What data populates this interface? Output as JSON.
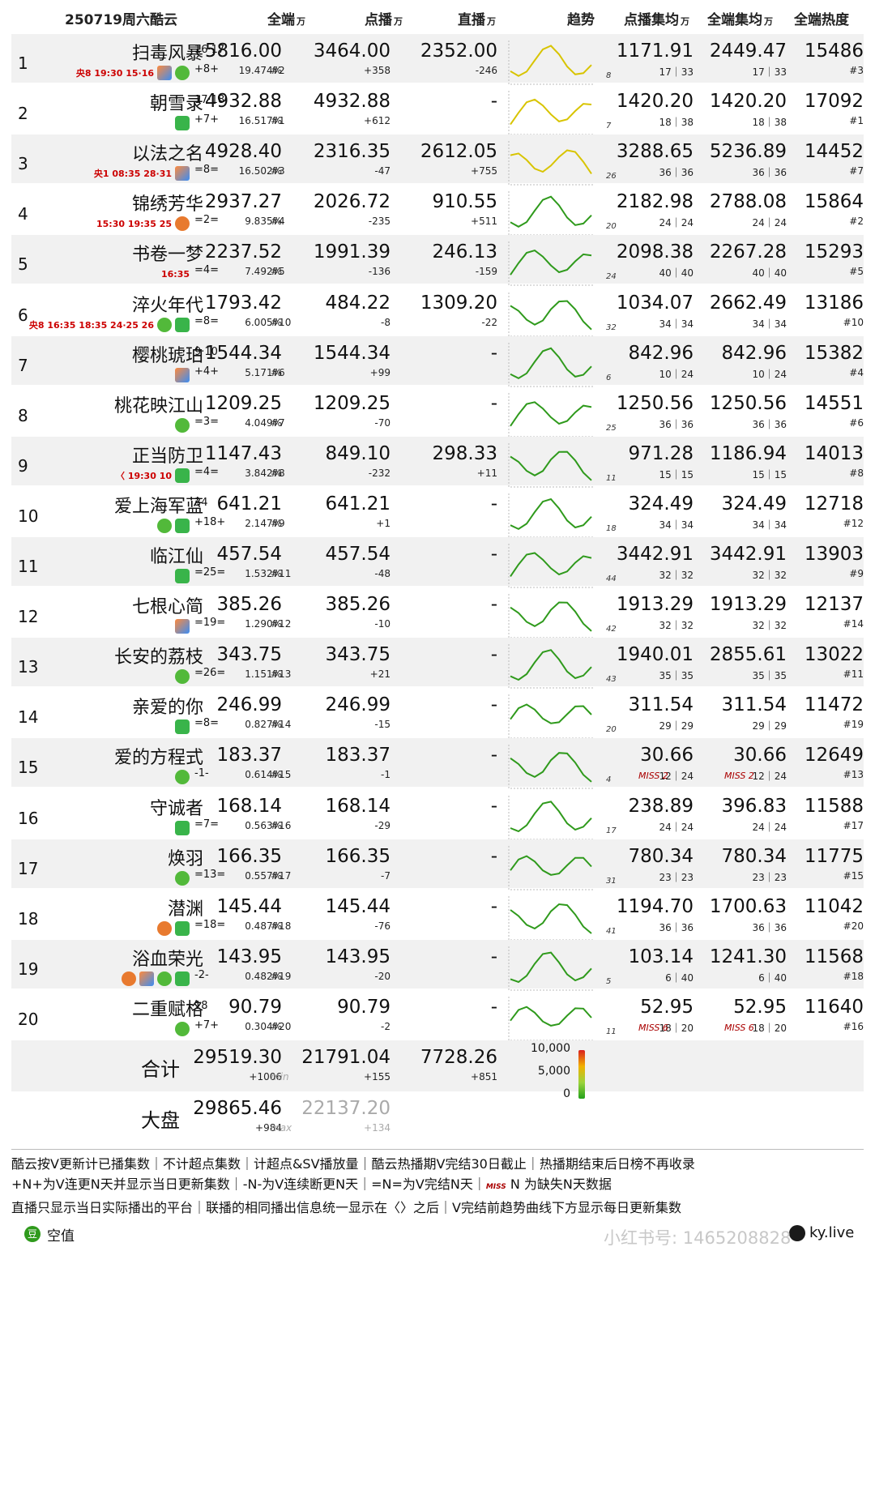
{
  "header": {
    "date": "250719周六酷云",
    "col_all": "全端",
    "col_all_u": "万",
    "col_vod": "点播",
    "col_vod_u": "万",
    "col_live": "直播",
    "col_live_u": "万",
    "col_trend": "趋势",
    "col_vod_avg": "点播集均",
    "col_vod_avg_u": "万",
    "col_all_avg": "全端集均",
    "col_all_avg_u": "万",
    "col_heat": "全端热度"
  },
  "rows": [
    {
      "rank": "1",
      "title": "扫毒风暴",
      "ep": "16·17",
      "upd": "+8+",
      "tag": "央8 19:30 15·16",
      "plats": [
        "t",
        "g"
      ],
      "all": "5816.00",
      "share": "19.474%",
      "vod": "3464.00",
      "vod_rank": "#2",
      "vod_delta": "+358",
      "live": "2352.00",
      "live_delta": "-246",
      "tcount": "8",
      "vod_avg": "1171.91",
      "vod_ep": "17｜33",
      "all_avg": "2449.47",
      "all_ep": "17｜33",
      "heat": "15486",
      "heat_rank": "#3"
    },
    {
      "rank": "2",
      "title": "朝雪录",
      "ep": "17·18",
      "upd": "+7+",
      "tag": "",
      "plats": [
        "q"
      ],
      "all": "4932.88",
      "share": "16.517%",
      "vod": "4932.88",
      "vod_rank": "#1",
      "vod_delta": "+612",
      "live": "-",
      "live_delta": "",
      "tcount": "7",
      "vod_avg": "1420.20",
      "vod_ep": "18｜38",
      "all_avg": "1420.20",
      "all_ep": "18｜38",
      "heat": "17092",
      "heat_rank": "#1"
    },
    {
      "rank": "3",
      "title": "以法之名",
      "ep": "",
      "upd": "=8=",
      "tag": "央1 08:35 28·31",
      "plats": [
        "t"
      ],
      "all": "4928.40",
      "share": "16.502%",
      "vod": "2316.35",
      "vod_rank": "#3",
      "vod_delta": "-47",
      "live": "2612.05",
      "live_delta": "+755",
      "tcount": "26",
      "vod_avg": "3288.65",
      "vod_ep": "36｜36",
      "all_avg": "5236.89",
      "all_ep": "36｜36",
      "heat": "14452",
      "heat_rank": "#7"
    },
    {
      "rank": "4",
      "title": "锦绣芳华",
      "ep": "",
      "upd": "=2=",
      "tag": "15:30 19:35 25",
      "plats": [
        "m"
      ],
      "all": "2937.27",
      "share": "9.835%",
      "vod": "2026.72",
      "vod_rank": "#4",
      "vod_delta": "-235",
      "live": "910.55",
      "live_delta": "+511",
      "tcount": "20",
      "vod_avg": "2182.98",
      "vod_ep": "24｜24",
      "all_avg": "2788.08",
      "all_ep": "24｜24",
      "heat": "15864",
      "heat_rank": "#2"
    },
    {
      "rank": "5",
      "title": "书卷一梦",
      "ep": "",
      "upd": "=4=",
      "tag": "16:35",
      "plats": [],
      "all": "2237.52",
      "share": "7.492%",
      "vod": "1991.39",
      "vod_rank": "#5",
      "vod_delta": "-136",
      "live": "246.13",
      "live_delta": "-159",
      "tcount": "24",
      "vod_avg": "2098.38",
      "vod_ep": "40｜40",
      "all_avg": "2267.28",
      "all_ep": "40｜40",
      "heat": "15293",
      "heat_rank": "#5"
    },
    {
      "rank": "6",
      "title": "淬火年代",
      "ep": "",
      "upd": "=8=",
      "tag": "央8 16:35 18:35 24·25 26",
      "plats": [
        "g",
        "q"
      ],
      "all": "1793.42",
      "share": "6.005%",
      "vod": "484.22",
      "vod_rank": "#10",
      "vod_delta": "-8",
      "live": "1309.20",
      "live_delta": "-22",
      "tcount": "32",
      "vod_avg": "1034.07",
      "vod_ep": "34｜34",
      "all_avg": "2662.49",
      "all_ep": "34｜34",
      "heat": "13186",
      "heat_rank": "#10"
    },
    {
      "rank": "7",
      "title": "樱桃琥珀",
      "ep": "9·10",
      "upd": "+4+",
      "tag": "",
      "plats": [
        "t"
      ],
      "all": "1544.34",
      "share": "5.171%",
      "vod": "1544.34",
      "vod_rank": "#6",
      "vod_delta": "+99",
      "live": "-",
      "live_delta": "",
      "tcount": "6",
      "vod_avg": "842.96",
      "vod_ep": "10｜24",
      "all_avg": "842.96",
      "all_ep": "10｜24",
      "heat": "15382",
      "heat_rank": "#4"
    },
    {
      "rank": "8",
      "title": "桃花映江山",
      "ep": "",
      "upd": "=3=",
      "tag": "",
      "plats": [
        "g"
      ],
      "all": "1209.25",
      "share": "4.049%",
      "vod": "1209.25",
      "vod_rank": "#7",
      "vod_delta": "-70",
      "live": "-",
      "live_delta": "",
      "tcount": "25",
      "vod_avg": "1250.56",
      "vod_ep": "36｜36",
      "all_avg": "1250.56",
      "all_ep": "36｜36",
      "heat": "14551",
      "heat_rank": "#6"
    },
    {
      "rank": "9",
      "title": "正当防卫",
      "ep": "",
      "upd": "=4=",
      "tag": "〈 19:30 10",
      "plats": [
        "q"
      ],
      "all": "1147.43",
      "share": "3.842%",
      "vod": "849.10",
      "vod_rank": "#8",
      "vod_delta": "-232",
      "live": "298.33",
      "live_delta": "+11",
      "tcount": "11",
      "vod_avg": "971.28",
      "vod_ep": "15｜15",
      "all_avg": "1186.94",
      "all_ep": "15｜15",
      "heat": "14013",
      "heat_rank": "#8"
    },
    {
      "rank": "10",
      "title": "爱上海军蓝",
      "ep": "34",
      "upd": "+18+",
      "tag": "",
      "plats": [
        "g",
        "q"
      ],
      "all": "641.21",
      "share": "2.147%",
      "vod": "641.21",
      "vod_rank": "#9",
      "vod_delta": "+1",
      "live": "-",
      "live_delta": "",
      "tcount": "18",
      "vod_avg": "324.49",
      "vod_ep": "34｜34",
      "all_avg": "324.49",
      "all_ep": "34｜34",
      "heat": "12718",
      "heat_rank": "#12"
    },
    {
      "rank": "11",
      "title": "临江仙",
      "ep": "",
      "upd": "=25=",
      "tag": "",
      "plats": [
        "q"
      ],
      "all": "457.54",
      "share": "1.532%",
      "vod": "457.54",
      "vod_rank": "#11",
      "vod_delta": "-48",
      "live": "-",
      "live_delta": "",
      "tcount": "44",
      "vod_avg": "3442.91",
      "vod_ep": "32｜32",
      "all_avg": "3442.91",
      "all_ep": "32｜32",
      "heat": "13903",
      "heat_rank": "#9"
    },
    {
      "rank": "12",
      "title": "七根心简",
      "ep": "",
      "upd": "=19=",
      "tag": "",
      "plats": [
        "t"
      ],
      "all": "385.26",
      "share": "1.290%",
      "vod": "385.26",
      "vod_rank": "#12",
      "vod_delta": "-10",
      "live": "-",
      "live_delta": "",
      "tcount": "42",
      "vod_avg": "1913.29",
      "vod_ep": "32｜32",
      "all_avg": "1913.29",
      "all_ep": "32｜32",
      "heat": "12137",
      "heat_rank": "#14"
    },
    {
      "rank": "13",
      "title": "长安的荔枝",
      "ep": "",
      "upd": "=26=",
      "tag": "",
      "plats": [
        "g"
      ],
      "all": "343.75",
      "share": "1.151%",
      "vod": "343.75",
      "vod_rank": "#13",
      "vod_delta": "+21",
      "live": "-",
      "live_delta": "",
      "tcount": "43",
      "vod_avg": "1940.01",
      "vod_ep": "35｜35",
      "all_avg": "2855.61",
      "all_ep": "35｜35",
      "heat": "13022",
      "heat_rank": "#11"
    },
    {
      "rank": "14",
      "title": "亲爱的你",
      "ep": "",
      "upd": "=8=",
      "tag": "",
      "plats": [
        "q"
      ],
      "all": "246.99",
      "share": "0.827%",
      "vod": "246.99",
      "vod_rank": "#14",
      "vod_delta": "-15",
      "live": "-",
      "live_delta": "",
      "tcount": "20",
      "vod_avg": "311.54",
      "vod_ep": "29｜29",
      "all_avg": "311.54",
      "all_ep": "29｜29",
      "heat": "11472",
      "heat_rank": "#19"
    },
    {
      "rank": "15",
      "title": "爱的方程式",
      "ep": "",
      "upd": "-1-",
      "tag": "",
      "plats": [
        "g"
      ],
      "all": "183.37",
      "share": "0.614%",
      "vod": "183.37",
      "vod_rank": "#15",
      "vod_delta": "-1",
      "live": "-",
      "live_delta": "",
      "tcount": "4",
      "vod_avg": "30.66",
      "vod_ep": "12｜24",
      "all_avg": "30.66",
      "all_ep": "12｜24",
      "heat": "12649",
      "heat_rank": "#13",
      "miss": "MISS 2"
    },
    {
      "rank": "16",
      "title": "守诚者",
      "ep": "",
      "upd": "=7=",
      "tag": "",
      "plats": [
        "q"
      ],
      "all": "168.14",
      "share": "0.563%",
      "vod": "168.14",
      "vod_rank": "#16",
      "vod_delta": "-29",
      "live": "-",
      "live_delta": "",
      "tcount": "17",
      "vod_avg": "238.89",
      "vod_ep": "24｜24",
      "all_avg": "396.83",
      "all_ep": "24｜24",
      "heat": "11588",
      "heat_rank": "#17"
    },
    {
      "rank": "17",
      "title": "焕羽",
      "ep": "",
      "upd": "=13=",
      "tag": "",
      "plats": [
        "g"
      ],
      "all": "166.35",
      "share": "0.557%",
      "vod": "166.35",
      "vod_rank": "#17",
      "vod_delta": "-7",
      "live": "-",
      "live_delta": "",
      "tcount": "31",
      "vod_avg": "780.34",
      "vod_ep": "23｜23",
      "all_avg": "780.34",
      "all_ep": "23｜23",
      "heat": "11775",
      "heat_rank": "#15"
    },
    {
      "rank": "18",
      "title": "潜渊",
      "ep": "",
      "upd": "=18=",
      "tag": "",
      "plats": [
        "m",
        "q"
      ],
      "all": "145.44",
      "share": "0.487%",
      "vod": "145.44",
      "vod_rank": "#18",
      "vod_delta": "-76",
      "live": "-",
      "live_delta": "",
      "tcount": "41",
      "vod_avg": "1194.70",
      "vod_ep": "36｜36",
      "all_avg": "1700.63",
      "all_ep": "36｜36",
      "heat": "11042",
      "heat_rank": "#20"
    },
    {
      "rank": "19",
      "title": "浴血荣光",
      "ep": "",
      "upd": "-2-",
      "tag": "",
      "plats": [
        "m",
        "t",
        "g",
        "q"
      ],
      "all": "143.95",
      "share": "0.482%",
      "vod": "143.95",
      "vod_rank": "#19",
      "vod_delta": "-20",
      "live": "-",
      "live_delta": "",
      "tcount": "5",
      "vod_avg": "103.14",
      "vod_ep": "6｜40",
      "all_avg": "1241.30",
      "all_ep": "6｜40",
      "heat": "11568",
      "heat_rank": "#18"
    },
    {
      "rank": "20",
      "title": "二重赋格",
      "ep": "18",
      "upd": "+7+",
      "tag": "",
      "plats": [
        "g"
      ],
      "all": "90.79",
      "share": "0.304%",
      "vod": "90.79",
      "vod_rank": "#20",
      "vod_delta": "-2",
      "live": "-",
      "live_delta": "",
      "tcount": "11",
      "vod_avg": "52.95",
      "vod_ep": "18｜20",
      "all_avg": "52.95",
      "all_ep": "18｜20",
      "heat": "11640",
      "heat_rank": "#16",
      "miss": "MISS 6"
    }
  ],
  "totals": {
    "sum_label": "合计",
    "sum_all": "29519.30",
    "sum_all_d": "+1006",
    "sum_vod": "21791.04",
    "sum_vod_tag": "min",
    "sum_vod_d": "+155",
    "sum_live": "7728.26",
    "sum_live_d": "+851",
    "market_label": "大盘",
    "mk_all": "29865.46",
    "mk_all_d": "+984",
    "mk_vod": "22137.20",
    "mk_vod_tag": "max",
    "mk_vod_d": "+134",
    "legend": [
      "10,000",
      "5,000",
      "0"
    ]
  },
  "footer": {
    "line1": "酷云按V更新计已播集数｜不计超点集数｜计超点&SV播放量｜酷云热播期V完结30日截止｜热播期结束后日榜不再收录",
    "line2a": "+N+为V连更N天并显示当日更新集数｜-N-为V连续断更N天｜=N=为V完结N天｜",
    "line2miss": "MISS",
    "line2b": "N 为缺失N天数据",
    "line3": "直播只显示当日实际播出的平台｜联播的相同播出信息统一显示在〈〉之后｜V完结前趋势曲线下方显示每日更新集数",
    "null_label": "空值",
    "brand": "ky.live",
    "watermark": "小红书号: 1465208828"
  },
  "colors": {
    "accent_green": "#2f9a1c",
    "accent_yellow": "#d8c400",
    "accent_red": "#c43310"
  }
}
